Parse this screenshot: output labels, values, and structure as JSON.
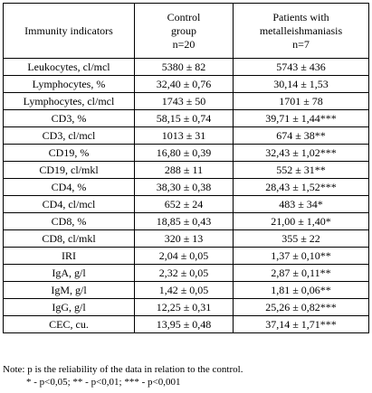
{
  "headers": {
    "indicator": "Immunity indicators",
    "control_lines": [
      "Control",
      "group",
      "n=20"
    ],
    "patients_lines": [
      "Patients with",
      "metalleishmaniasis",
      "n=7"
    ]
  },
  "rows": [
    {
      "indicator": "Leukocytes, cl/mcl",
      "control": "5380 ± 82",
      "patients": "5743 ± 436"
    },
    {
      "indicator": "Lymphocytes, %",
      "control": "32,40 ± 0,76",
      "patients": "30,14 ± 1,53"
    },
    {
      "indicator": "Lymphocytes, cl/mcl",
      "control": "1743 ± 50",
      "patients": "1701 ± 78"
    },
    {
      "indicator": "CD3, %",
      "control": "58,15 ± 0,74",
      "patients": "39,71 ± 1,44***"
    },
    {
      "indicator": "CD3, cl/mcl",
      "control": "1013 ± 31",
      "patients": "674 ± 38**"
    },
    {
      "indicator": "CD19, %",
      "control": "16,80 ± 0,39",
      "patients": "32,43 ± 1,02***"
    },
    {
      "indicator": "CD19, cl/mkl",
      "control": "288 ± 11",
      "patients": "552 ± 31**"
    },
    {
      "indicator": "CD4, %",
      "control": "38,30 ± 0,38",
      "patients": "28,43 ± 1,52***"
    },
    {
      "indicator": "CD4, cl/mcl",
      "control": "652 ± 24",
      "patients": "483 ± 34*"
    },
    {
      "indicator": "CD8, %",
      "control": "18,85 ± 0,43",
      "patients": "21,00 ± 1,40*"
    },
    {
      "indicator": "CD8, cl/mkl",
      "control": "320 ± 13",
      "patients": "355 ± 22"
    },
    {
      "indicator": "IRI",
      "control": "2,04 ± 0,05",
      "patients": "1,37 ± 0,10**"
    },
    {
      "indicator": "IgA, g/l",
      "control": "2,32 ± 0,05",
      "patients": "2,87 ± 0,11**"
    },
    {
      "indicator": "IgM, g/l",
      "control": "1,42 ± 0,05",
      "patients": "1,81 ± 0,06**"
    },
    {
      "indicator": "IgG, g/l",
      "control": "12,25 ± 0,31",
      "patients": "25,26 ± 0,82***"
    },
    {
      "indicator": "CEC, cu.",
      "control": "13,95 ± 0,48",
      "patients": "37,14 ± 1,71***"
    }
  ],
  "note": {
    "line1": "Note: p is the reliability of the data in relation to the control.",
    "line2": "* - p<0,05; ** - p<0,01; *** - p<0,001"
  }
}
